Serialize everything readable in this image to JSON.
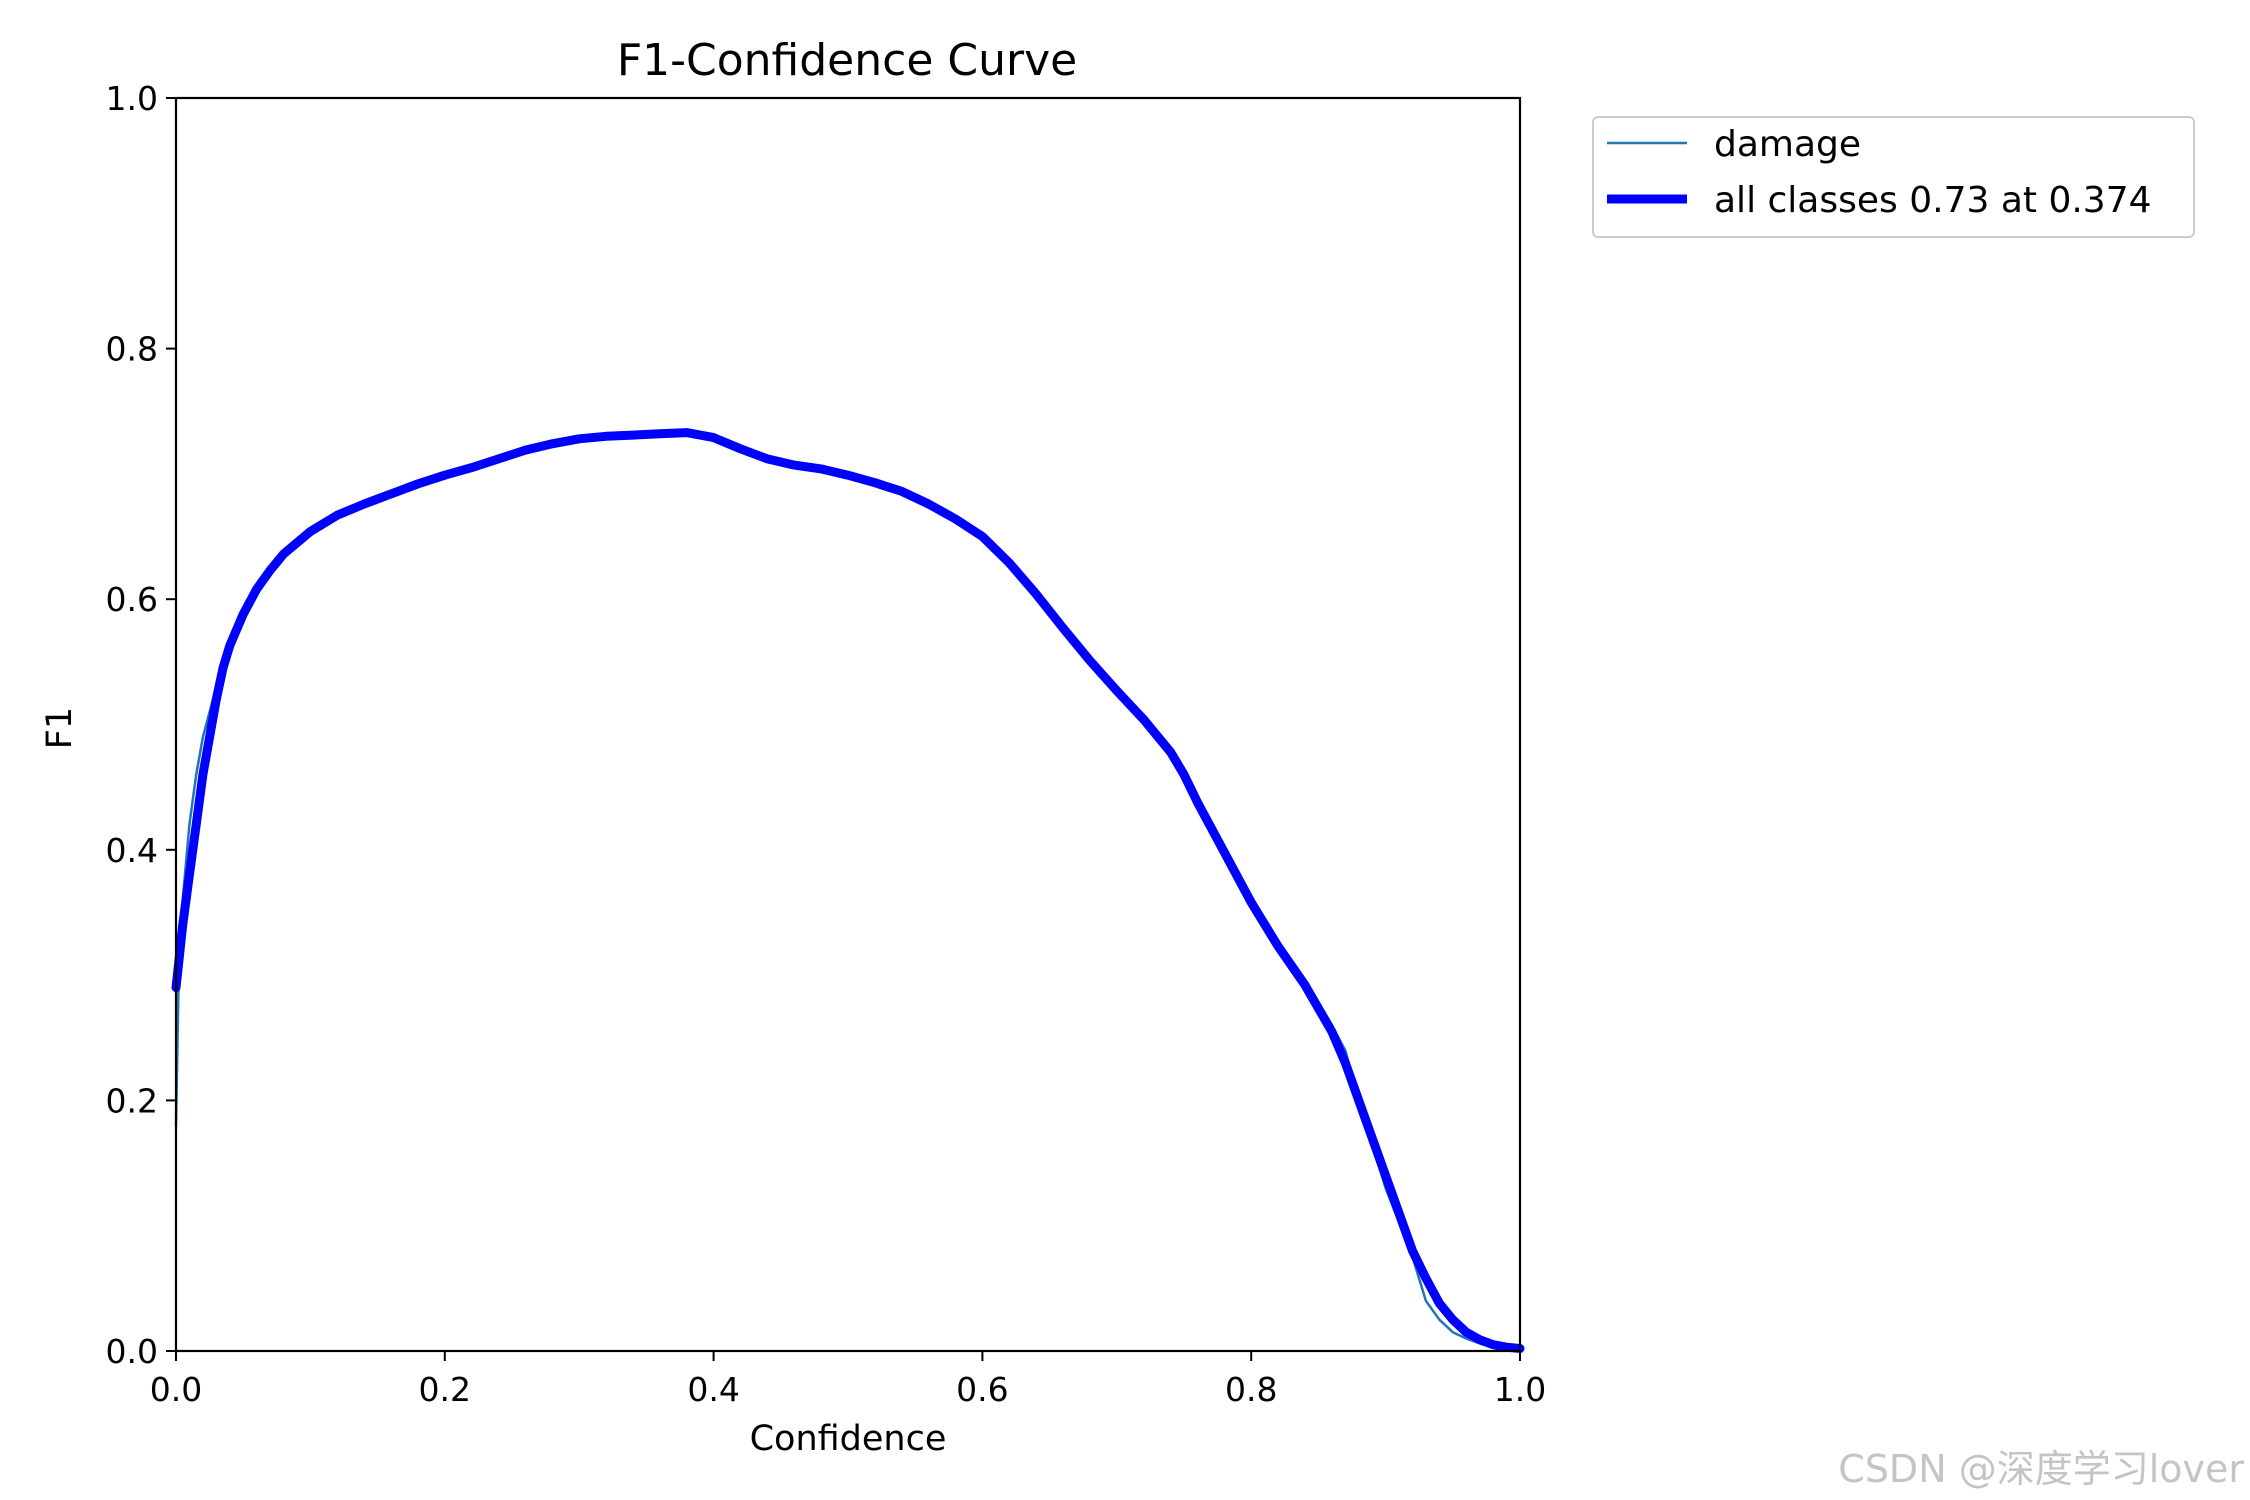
{
  "chart_data": {
    "type": "line",
    "title": "F1-Confidence Curve",
    "xlabel": "Confidence",
    "ylabel": "F1",
    "xlim": [
      0,
      1
    ],
    "ylim": [
      0,
      1
    ],
    "xticks": [
      "0.0",
      "0.2",
      "0.4",
      "0.6",
      "0.8",
      "1.0"
    ],
    "yticks": [
      "0.0",
      "0.2",
      "0.4",
      "0.6",
      "0.8",
      "1.0"
    ],
    "grid": false,
    "legend_position": "outside-top-right",
    "series": [
      {
        "name": "damage",
        "color": "#1f77b4",
        "x": [
          0.0,
          0.002,
          0.005,
          0.01,
          0.015,
          0.02,
          0.025,
          0.03,
          0.035,
          0.04,
          0.05,
          0.06,
          0.07,
          0.08,
          0.1,
          0.12,
          0.14,
          0.16,
          0.18,
          0.2,
          0.22,
          0.24,
          0.26,
          0.28,
          0.3,
          0.32,
          0.34,
          0.36,
          0.38,
          0.4,
          0.42,
          0.44,
          0.46,
          0.48,
          0.5,
          0.52,
          0.54,
          0.56,
          0.58,
          0.6,
          0.62,
          0.64,
          0.66,
          0.68,
          0.7,
          0.72,
          0.74,
          0.75,
          0.76,
          0.78,
          0.8,
          0.82,
          0.84,
          0.86,
          0.87,
          0.88,
          0.9,
          0.92,
          0.93,
          0.94,
          0.95,
          0.96,
          0.97,
          0.98,
          0.99,
          1.0
        ],
        "y": [
          0.18,
          0.3,
          0.36,
          0.42,
          0.46,
          0.49,
          0.51,
          0.53,
          0.55,
          0.565,
          0.59,
          0.61,
          0.625,
          0.637,
          0.655,
          0.668,
          0.677,
          0.685,
          0.693,
          0.7,
          0.706,
          0.713,
          0.72,
          0.725,
          0.729,
          0.731,
          0.731,
          0.733,
          0.734,
          0.73,
          0.72,
          0.71,
          0.707,
          0.705,
          0.7,
          0.694,
          0.687,
          0.677,
          0.665,
          0.651,
          0.63,
          0.605,
          0.578,
          0.552,
          0.528,
          0.505,
          0.48,
          0.465,
          0.44,
          0.4,
          0.36,
          0.325,
          0.295,
          0.26,
          0.24,
          0.2,
          0.13,
          0.075,
          0.04,
          0.025,
          0.015,
          0.01,
          0.006,
          0.003,
          0.002,
          0.001
        ]
      },
      {
        "name": "all classes 0.73 at 0.374",
        "color": "#0000ff",
        "x": [
          0.0,
          0.002,
          0.005,
          0.01,
          0.015,
          0.02,
          0.025,
          0.03,
          0.035,
          0.04,
          0.05,
          0.06,
          0.07,
          0.08,
          0.1,
          0.12,
          0.14,
          0.16,
          0.18,
          0.2,
          0.22,
          0.24,
          0.26,
          0.28,
          0.3,
          0.32,
          0.34,
          0.36,
          0.38,
          0.4,
          0.42,
          0.44,
          0.46,
          0.48,
          0.5,
          0.52,
          0.54,
          0.56,
          0.58,
          0.6,
          0.62,
          0.64,
          0.66,
          0.68,
          0.7,
          0.72,
          0.74,
          0.75,
          0.76,
          0.78,
          0.8,
          0.82,
          0.84,
          0.86,
          0.87,
          0.88,
          0.9,
          0.92,
          0.93,
          0.94,
          0.95,
          0.96,
          0.97,
          0.98,
          0.99,
          1.0
        ],
        "y": [
          0.29,
          0.31,
          0.34,
          0.38,
          0.42,
          0.46,
          0.49,
          0.52,
          0.545,
          0.563,
          0.588,
          0.608,
          0.623,
          0.636,
          0.654,
          0.667,
          0.676,
          0.684,
          0.692,
          0.699,
          0.705,
          0.712,
          0.719,
          0.724,
          0.728,
          0.73,
          0.731,
          0.732,
          0.733,
          0.729,
          0.72,
          0.712,
          0.707,
          0.704,
          0.699,
          0.693,
          0.686,
          0.676,
          0.664,
          0.65,
          0.629,
          0.604,
          0.577,
          0.551,
          0.527,
          0.504,
          0.478,
          0.46,
          0.438,
          0.398,
          0.358,
          0.323,
          0.292,
          0.255,
          0.23,
          0.2,
          0.14,
          0.08,
          0.058,
          0.038,
          0.025,
          0.015,
          0.009,
          0.005,
          0.003,
          0.002
        ]
      }
    ]
  },
  "watermark": "CSDN @深度学习lover"
}
